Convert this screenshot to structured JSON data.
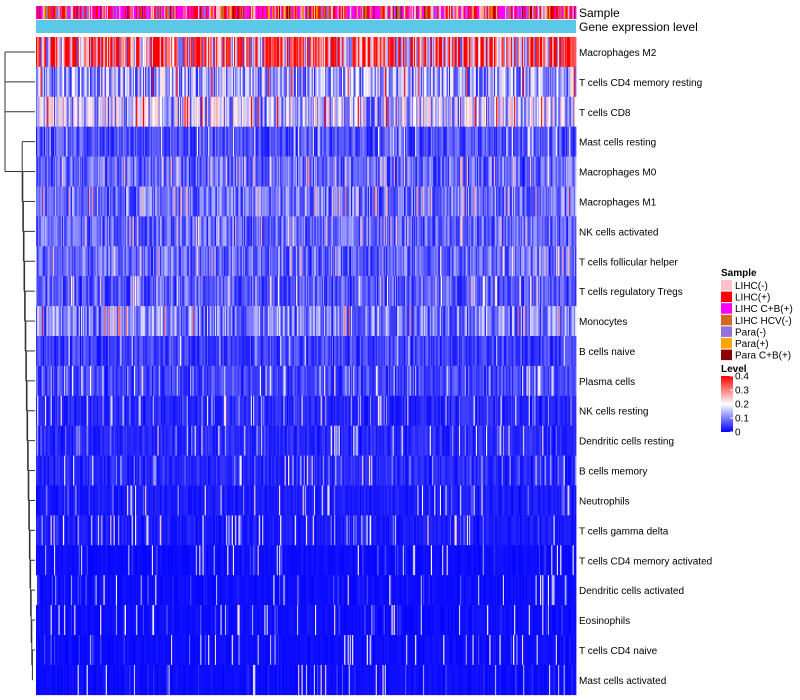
{
  "chart_data": {
    "type": "heatmap",
    "title": "",
    "annotation_rows": [
      "Sample",
      "Gene expression level"
    ],
    "rows": [
      "Macrophages M2",
      "T cells CD4 memory resting",
      "T cells CD8",
      "Mast cells resting",
      "Macrophages M0",
      "Macrophages M1",
      "NK cells activated",
      "T cells follicular helper",
      "T cells regulatory  Tregs",
      "Monocytes",
      "B cells naive",
      "Plasma cells",
      "NK cells resting",
      "Dendritic cells resting",
      "B cells memory",
      "Neutrophils",
      "T cells gamma delta",
      "T cells CD4 memory activated",
      "Dendritic cells activated",
      "Eosinophils",
      "T cells CD4 naive",
      "Mast cells activated"
    ],
    "approx_row_mean_level": [
      0.3,
      0.13,
      0.15,
      0.06,
      0.08,
      0.09,
      0.08,
      0.08,
      0.07,
      0.1,
      0.05,
      0.05,
      0.03,
      0.03,
      0.03,
      0.02,
      0.02,
      0.01,
      0.01,
      0.01,
      0.01,
      0.01
    ],
    "column_count": 480,
    "sample_legend": {
      "title": "Sample",
      "entries": [
        {
          "label": "LIHC(-)",
          "color": "#FFC0CB"
        },
        {
          "label": "LIHC(+)",
          "color": "#FF0000"
        },
        {
          "label": "LIHC C+B(+)",
          "color": "#FF00FF"
        },
        {
          "label": "LIHC HCV(-)",
          "color": "#D2691E"
        },
        {
          "label": "Para(-)",
          "color": "#9370DB"
        },
        {
          "label": "Para(+)",
          "color": "#FFA500"
        },
        {
          "label": "Para C+B(+)",
          "color": "#8B0000"
        }
      ]
    },
    "level_legend": {
      "title": "Level",
      "ticks": [
        "0.4",
        "0.3",
        "0.2",
        "0.1",
        "0"
      ],
      "tick_values": [
        0.4,
        0.3,
        0.2,
        0.1,
        0
      ],
      "range": [
        0,
        0.4
      ],
      "colors": {
        "low": "#0000FF",
        "mid": "#FFFFFF",
        "high": "#FF0000",
        "mid_value": 0.2
      }
    },
    "gene_expression_color": "#5BC8E8"
  }
}
